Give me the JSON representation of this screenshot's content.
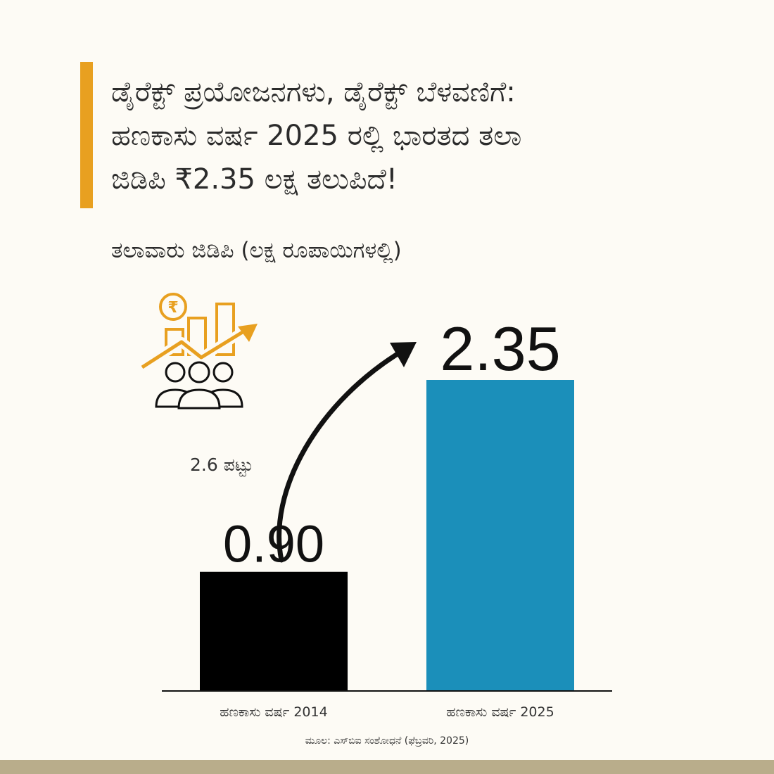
{
  "header": {
    "title_lines": [
      "ಡೈರೆಕ್ಟ್ ಪ್ರಯೋಜನಗಳು, ಡೈರೆಕ್ಟ್ ಬೆಳವಣಿಗೆ:",
      "ಹಣಕಾಸು ವರ್ಷ 2025 ರಲ್ಲಿ ಭಾರತದ ತಲಾ",
      "ಜಿಡಿಪಿ ₹2.35 ಲಕ್ಷ ತಲುಪಿದೆ!"
    ],
    "subtitle": "ತಲಾವಾರು ಜಿಡಿಪಿ (ಲಕ್ಷ ರೂಪಾಯಿಗಳಲ್ಲಿ)"
  },
  "icon": {
    "name": "rupee-growth-people-icon",
    "symbol": "₹"
  },
  "annotation": {
    "growth_label": "2.6 ಪಟ್ಟು"
  },
  "footer": {
    "source": "ಮೂಲ: ಎಸ್‌ಬಿಐ ಸಂಶೋಧನೆ (ಫೆಬ್ರವರಿ, 2025)"
  },
  "colors": {
    "background": "#fdfbf5",
    "accent": "#e8a020",
    "bar_2014": "#000000",
    "bar_2025": "#1b8fba",
    "bottom_band": "#b9ad8b"
  },
  "chart_data": {
    "type": "bar",
    "categories": [
      "ಹಣಕಾಸು ವರ್ಷ 2014",
      "ಹಣಕಾಸು ವರ್ಷ 2025"
    ],
    "values": [
      0.9,
      2.35
    ],
    "value_labels": [
      "0.90",
      "2.35"
    ],
    "bar_colors": [
      "#000000",
      "#1b8fba"
    ],
    "title": "ತಲಾವಾರು ಜಿಡಿಪಿ (ಲಕ್ಷ ರೂಪಾಯಿಗಳಲ್ಲಿ)",
    "xlabel": "",
    "ylabel": "",
    "ylim": [
      0,
      2.35
    ],
    "grid": false,
    "legend": "none"
  }
}
